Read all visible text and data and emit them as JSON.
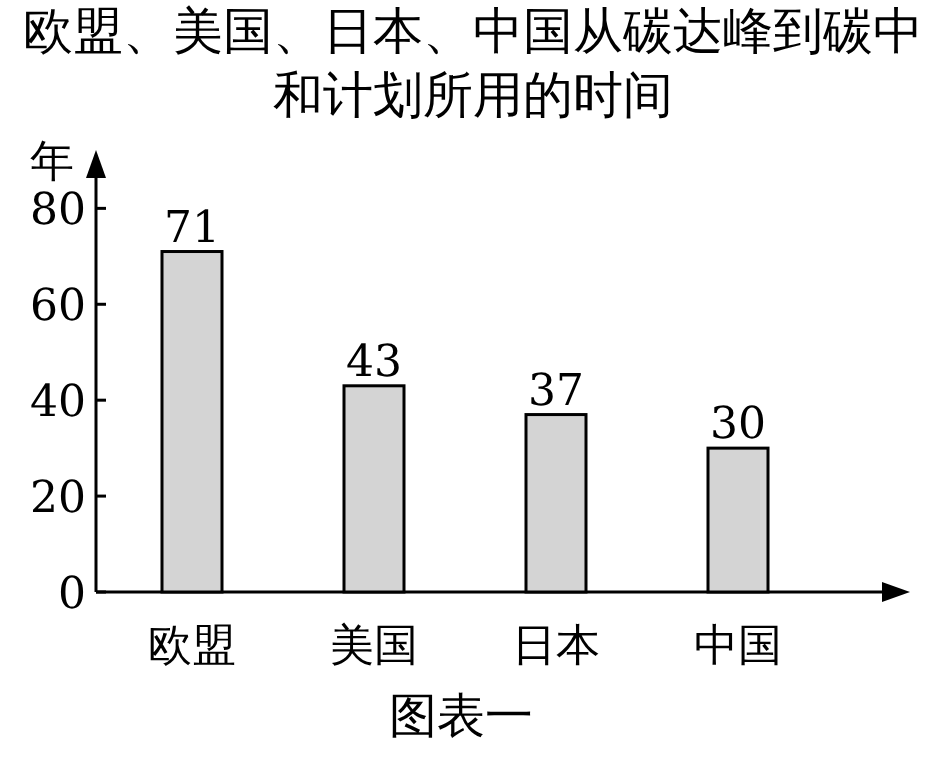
{
  "chart_data": {
    "type": "bar",
    "title": "欧盟、美国、日本、中国从碳达峰到碳中和计划所用的时间",
    "ylabel": "年",
    "categories": [
      "欧盟",
      "美国",
      "日本",
      "中国"
    ],
    "values": [
      71,
      43,
      37,
      30
    ],
    "color": "#d4d4d4",
    "data_labels": true,
    "ylim": [
      0,
      88
    ],
    "yticks": [
      0,
      20,
      40,
      60,
      80
    ],
    "annotations": [
      "图表一"
    ]
  }
}
